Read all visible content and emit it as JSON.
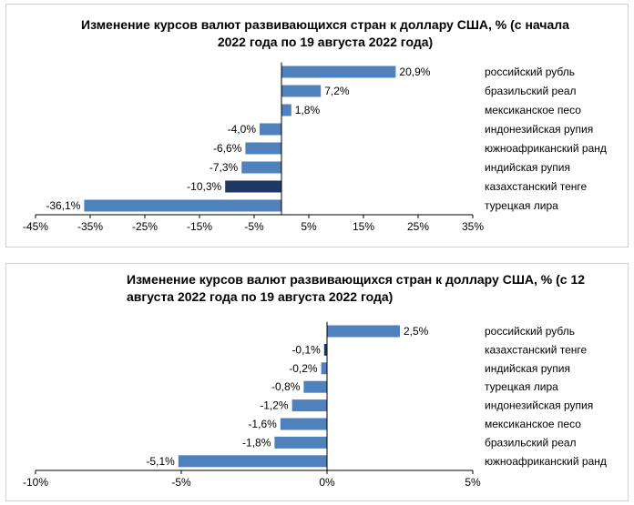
{
  "chart_data": [
    {
      "type": "bar",
      "orientation": "horizontal",
      "title": "Изменение курсов валют развивающихся стран к доллару США, % (с начала 2022 года по 19 августа 2022 года)",
      "categories": [
        "российский рубль",
        "бразильский реал",
        "мексиканское песо",
        "индонезийская рупия",
        "южноафриканский ранд",
        "индийская рупия",
        "казахстанский тенге",
        "турецкая лира"
      ],
      "values": [
        20.9,
        7.2,
        1.8,
        -4.0,
        -6.6,
        -7.3,
        -10.3,
        -36.1
      ],
      "value_labels": [
        "20,9%",
        "7,2%",
        "1,8%",
        "-4,0%",
        "-6,6%",
        "-7,3%",
        "-10,3%",
        "-36,1%"
      ],
      "xlim": [
        -45,
        35
      ],
      "ticks": [
        -45,
        -35,
        -25,
        -15,
        -5,
        5,
        15,
        25,
        35
      ],
      "tick_labels": [
        "-45%",
        "-35%",
        "-25%",
        "-15%",
        "-5%",
        "5%",
        "15%",
        "25%",
        "35%"
      ],
      "highlight_category": "казахстанский тенге",
      "colors": {
        "bar": "#4f81bd",
        "highlight": "#1f3864",
        "axis": "#000000"
      }
    },
    {
      "type": "bar",
      "orientation": "horizontal",
      "title": "Изменение курсов валют развивающихся стран к доллару США, % (с 12 августа 2022 года по 19 августа 2022 года)",
      "categories": [
        "российский рубль",
        "казахстанский тенге",
        "индийская рупия",
        "турецкая лира",
        "индонезийская рупия",
        "мексиканское песо",
        "бразильский реал",
        "южноафриканский ранд"
      ],
      "values": [
        2.5,
        -0.1,
        -0.2,
        -0.8,
        -1.2,
        -1.6,
        -1.8,
        -5.1
      ],
      "value_labels": [
        "2,5%",
        "-0,1%",
        "-0,2%",
        "-0,8%",
        "-1,2%",
        "-1,6%",
        "-1,8%",
        "-5,1%"
      ],
      "xlim": [
        -10,
        5
      ],
      "ticks": [
        -10,
        -5,
        0,
        5
      ],
      "tick_labels": [
        "-10%",
        "-5%",
        "0%",
        "5%"
      ],
      "highlight_category": "казахстанский тенге",
      "colors": {
        "bar": "#4f81bd",
        "highlight": "#1f3864",
        "axis": "#000000"
      }
    }
  ]
}
